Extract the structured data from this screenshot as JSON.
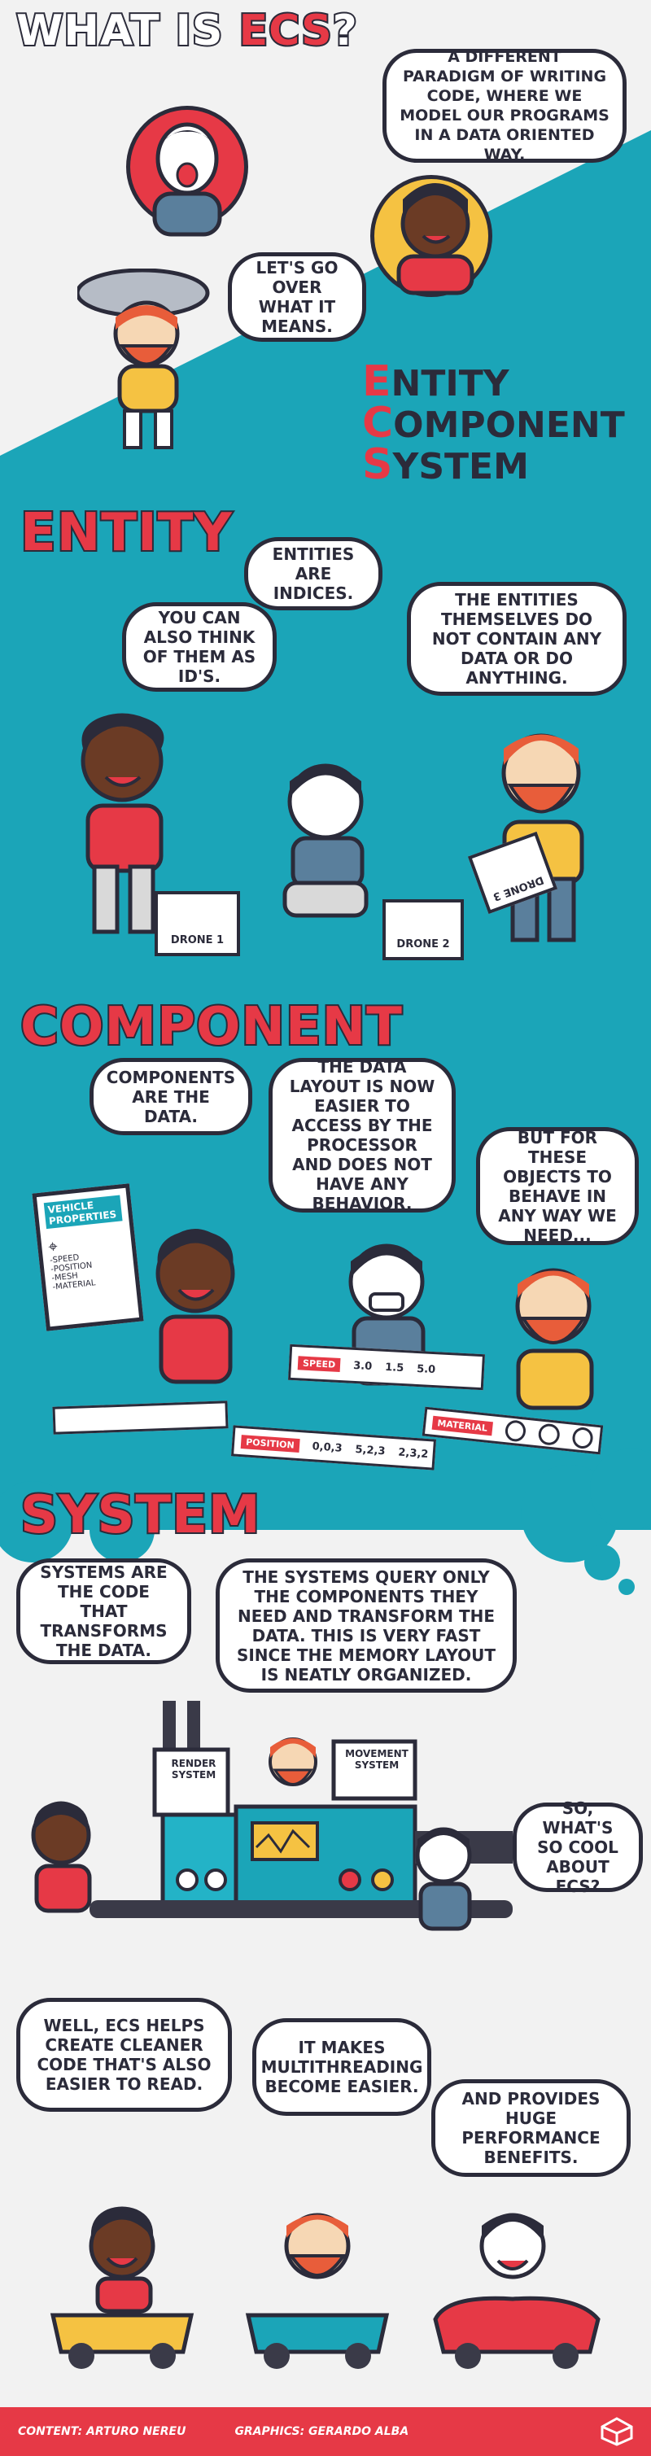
{
  "title": {
    "prefix": "WHAT IS ",
    "accent": "ECS",
    "suffix": "?"
  },
  "intro": {
    "bubble_1": "A DIFFERENT PARADIGM OF WRITING CODE, WHERE WE MODEL OUR PROGRAMS IN A DATA ORIENTED WAY.",
    "bubble_2": "LET'S GO OVER WHAT IT MEANS."
  },
  "acronym": [
    {
      "cap": "E",
      "rest": "NTITY"
    },
    {
      "cap": "C",
      "rest": "OMPONENT"
    },
    {
      "cap": "S",
      "rest": "YSTEM"
    }
  ],
  "entity": {
    "heading": "ENTITY",
    "bubble_indices": "ENTITIES ARE INDICES.",
    "bubble_ids": "YOU CAN ALSO THINK OF THEM AS ID'S.",
    "bubble_nodata": "THE ENTITIES THEMSELVES DO NOT CONTAIN ANY DATA OR DO ANYTHING.",
    "box_1": "DRONE 1",
    "box_2": "DRONE 2",
    "box_3": "DRONE 3"
  },
  "component": {
    "heading": "COMPONENT",
    "bubble_data": "COMPONENTS ARE THE DATA.",
    "bubble_layout": "THE DATA LAYOUT IS NOW EASIER TO ACCESS BY THE PROCESSOR AND DOES NOT HAVE ANY BEHAVIOR.",
    "bubble_behave": "BUT FOR THESE OBJECTS TO BEHAVE IN ANY WAY WE NEED...",
    "poster_title": "VEHICLE PROPERTIES",
    "poster_items": [
      "-SPEED",
      "-POSITION",
      "-MESH",
      "-MATERIAL"
    ],
    "speed_label": "SPEED",
    "speed_values": [
      "3.0",
      "1.5",
      "5.0"
    ],
    "position_label": "POSITION",
    "position_values": [
      "0,0,3",
      "5,2,3",
      "2,3,2"
    ],
    "material_label": "MATERIAL"
  },
  "system": {
    "heading": "SYSTEM",
    "bubble_code": "SYSTEMS ARE THE CODE THAT TRANSFORMS THE DATA.",
    "bubble_query": "THE SYSTEMS QUERY ONLY THE COMPONENTS THEY NEED AND TRANSFORM THE DATA. THIS IS VERY FAST SINCE THE MEMORY LAYOUT IS NEATLY ORGANIZED.",
    "bubble_cool": "SO, WHAT'S SO COOL ABOUT ECS?",
    "render_sign": "RENDER SYSTEM",
    "movement_sign": "MOVEMENT SYSTEM"
  },
  "benefits": {
    "bubble_cleaner": "WELL, ECS HELPS CREATE CLEANER CODE THAT'S ALSO EASIER TO READ.",
    "bubble_threading": "IT MAKES MULTITHREADING BECOME EASIER.",
    "bubble_perf": "AND PROVIDES HUGE PERFORMANCE BENEFITS."
  },
  "footer": {
    "content_credit": "CONTENT: ARTURO NEREU",
    "graphics_credit": "GRAPHICS: GERARDO ALBA"
  },
  "colors": {
    "accent_red": "#e63946",
    "teal": "#1ba5b8",
    "ink": "#2b2b3a",
    "background": "#f2f2f2"
  },
  "icons": [
    "unity-logo-icon"
  ]
}
